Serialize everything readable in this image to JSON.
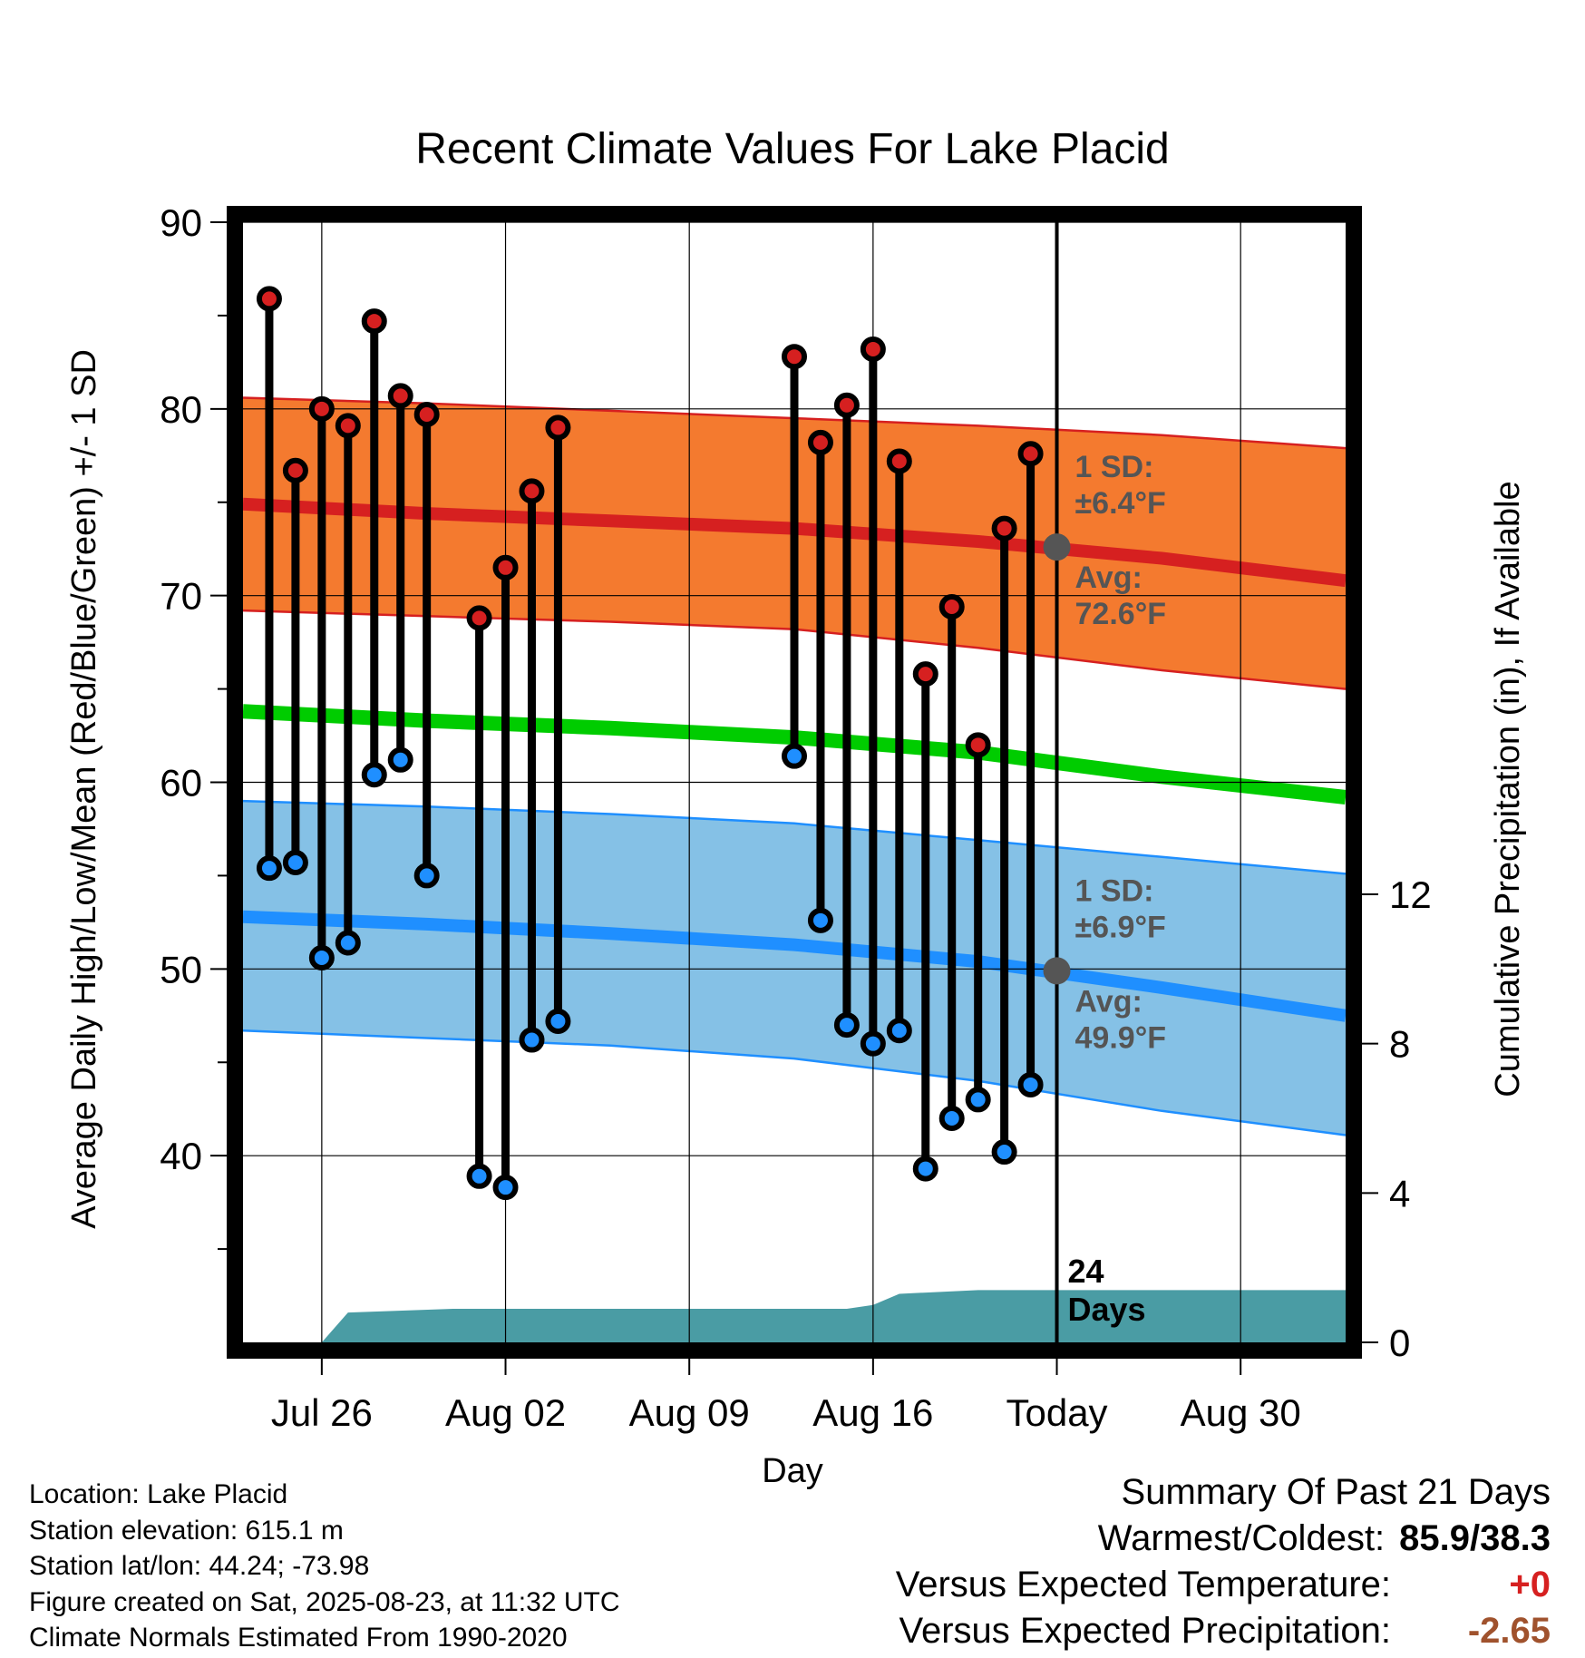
{
  "chart_data": {
    "type": "line",
    "title": "Recent Climate Values For Lake Placid",
    "xlabel": "Day",
    "ylabel": "Average Daily High/Low/Mean (Red/Blue/Green) +/- 1 SD",
    "y2label": "Cumulative Precipitation (in), If Available",
    "ylim": [
      30,
      90
    ],
    "y2lim": [
      0,
      30
    ],
    "yticks": [
      "90",
      "80",
      "70",
      "60",
      "50",
      "40"
    ],
    "y2ticks": [
      "12",
      "8",
      "4",
      "0"
    ],
    "xlim": [
      "2025-07-23",
      "2025-09-03"
    ],
    "xticks": [
      {
        "date": "2025-07-26",
        "label": "Jul 26"
      },
      {
        "date": "2025-08-02",
        "label": "Aug 02"
      },
      {
        "date": "2025-08-09",
        "label": "Aug 09"
      },
      {
        "date": "2025-08-16",
        "label": "Aug 16"
      },
      {
        "date": "2025-08-23",
        "label": "Today"
      },
      {
        "date": "2025-08-30",
        "label": "Aug 30"
      }
    ],
    "grid": true,
    "colors": {
      "high_band": "#f47a2f",
      "high_band_edge": "#d62020",
      "high_avg": "#d62020",
      "low_band": "#85c1e6",
      "low_band_edge": "#1f8fff",
      "low_avg": "#1f8fff",
      "mean": "#00cc00",
      "precip": "#4a9ca4",
      "high_marker": "#d62020",
      "low_marker": "#1f8fff",
      "annotation": "#555555"
    },
    "normals": [
      {
        "date": "2025-07-23",
        "high_avg": 74.9,
        "high_upper": 80.6,
        "high_lower": 69.2,
        "mean": 63.8,
        "low_avg": 52.8,
        "low_upper": 59.0,
        "low_lower": 46.7
      },
      {
        "date": "2025-07-30",
        "high_avg": 74.4,
        "high_upper": 80.3,
        "high_lower": 68.9,
        "mean": 63.3,
        "low_avg": 52.4,
        "low_upper": 58.7,
        "low_lower": 46.3
      },
      {
        "date": "2025-08-06",
        "high_avg": 74.0,
        "high_upper": 79.9,
        "high_lower": 68.6,
        "mean": 62.9,
        "low_avg": 51.9,
        "low_upper": 58.3,
        "low_lower": 45.9
      },
      {
        "date": "2025-08-13",
        "high_avg": 73.6,
        "high_upper": 79.5,
        "high_lower": 68.2,
        "mean": 62.4,
        "low_avg": 51.3,
        "low_upper": 57.8,
        "low_lower": 45.2
      },
      {
        "date": "2025-08-20",
        "high_avg": 72.9,
        "high_upper": 79.1,
        "high_lower": 67.2,
        "mean": 61.6,
        "low_avg": 50.4,
        "low_upper": 56.9,
        "low_lower": 44.0
      },
      {
        "date": "2025-08-27",
        "high_avg": 72.0,
        "high_upper": 78.6,
        "high_lower": 66.0,
        "mean": 60.3,
        "low_avg": 49.0,
        "low_upper": 56.0,
        "low_lower": 42.4
      },
      {
        "date": "2025-09-03",
        "high_avg": 70.8,
        "high_upper": 77.9,
        "high_lower": 65.0,
        "mean": 59.2,
        "low_avg": 47.5,
        "low_upper": 55.1,
        "low_lower": 41.1
      }
    ],
    "observations": [
      {
        "date": "2025-07-24",
        "high": 85.9,
        "low": 55.4
      },
      {
        "date": "2025-07-25",
        "high": 76.7,
        "low": 55.7
      },
      {
        "date": "2025-07-26",
        "high": 80.0,
        "low": 50.6
      },
      {
        "date": "2025-07-27",
        "high": 79.1,
        "low": 51.4
      },
      {
        "date": "2025-07-28",
        "high": 84.7,
        "low": 60.4
      },
      {
        "date": "2025-07-29",
        "high": 80.7,
        "low": 61.2
      },
      {
        "date": "2025-07-30",
        "high": 79.7,
        "low": 55.0
      },
      {
        "date": "2025-08-01",
        "high": 68.8,
        "low": 38.9
      },
      {
        "date": "2025-08-02",
        "high": 71.5,
        "low": 38.3
      },
      {
        "date": "2025-08-03",
        "high": 75.6,
        "low": 46.2
      },
      {
        "date": "2025-08-04",
        "high": 79.0,
        "low": 47.2
      },
      {
        "date": "2025-08-13",
        "high": 82.8,
        "low": 61.4
      },
      {
        "date": "2025-08-14",
        "high": 78.2,
        "low": 52.6
      },
      {
        "date": "2025-08-15",
        "high": 80.2,
        "low": 47.0
      },
      {
        "date": "2025-08-16",
        "high": 83.2,
        "low": 46.0
      },
      {
        "date": "2025-08-17",
        "high": 77.2,
        "low": 46.7
      },
      {
        "date": "2025-08-18",
        "high": 65.8,
        "low": 39.3
      },
      {
        "date": "2025-08-19",
        "high": 69.4,
        "low": 42.0
      },
      {
        "date": "2025-08-20",
        "high": 62.0,
        "low": 43.0
      },
      {
        "date": "2025-08-21",
        "high": 73.6,
        "low": 40.2
      },
      {
        "date": "2025-08-22",
        "high": 77.6,
        "low": 43.8
      }
    ],
    "precip_cumulative": [
      {
        "date": "2025-07-23",
        "value": 0.0
      },
      {
        "date": "2025-07-26",
        "value": 0.0
      },
      {
        "date": "2025-07-27",
        "value": 0.8
      },
      {
        "date": "2025-07-31",
        "value": 0.9
      },
      {
        "date": "2025-08-15",
        "value": 0.9
      },
      {
        "date": "2025-08-16",
        "value": 1.0
      },
      {
        "date": "2025-08-17",
        "value": 1.3
      },
      {
        "date": "2025-08-20",
        "value": 1.4
      },
      {
        "date": "2025-09-03",
        "value": 1.4
      }
    ],
    "today": "2025-08-23",
    "today_markers": {
      "high_avg": 72.6,
      "low_avg": 49.9
    },
    "annotations": {
      "high_sd_line1": "1 SD:",
      "high_sd_line2": "±6.4°F",
      "high_avg_line1": "Avg:",
      "high_avg_line2": "72.6°F",
      "low_sd_line1": "1 SD:",
      "low_sd_line2": "±6.9°F",
      "low_avg_line1": "Avg:",
      "low_avg_line2": "49.9°F",
      "days_line1": "24",
      "days_line2": "Days"
    }
  },
  "footer": {
    "location": "Location: Lake Placid",
    "elevation": "Station elevation: 615.1 m",
    "latlon": "Station lat/lon: 44.24; -73.98",
    "created": "Figure created on Sat, 2025-08-23, at 11:32 UTC",
    "normals": "Climate Normals Estimated From 1990-2020"
  },
  "summary": {
    "title": "Summary Of Past 21 Days",
    "warmest_label": "Warmest/Coldest:",
    "warmest_value": "85.9/38.3",
    "temp_label": "Versus Expected Temperature:",
    "temp_value": "+0",
    "temp_color": "#d62020",
    "precip_label": "Versus Expected Precipitation:",
    "precip_value": "-2.65",
    "precip_color": "#a0522d"
  }
}
